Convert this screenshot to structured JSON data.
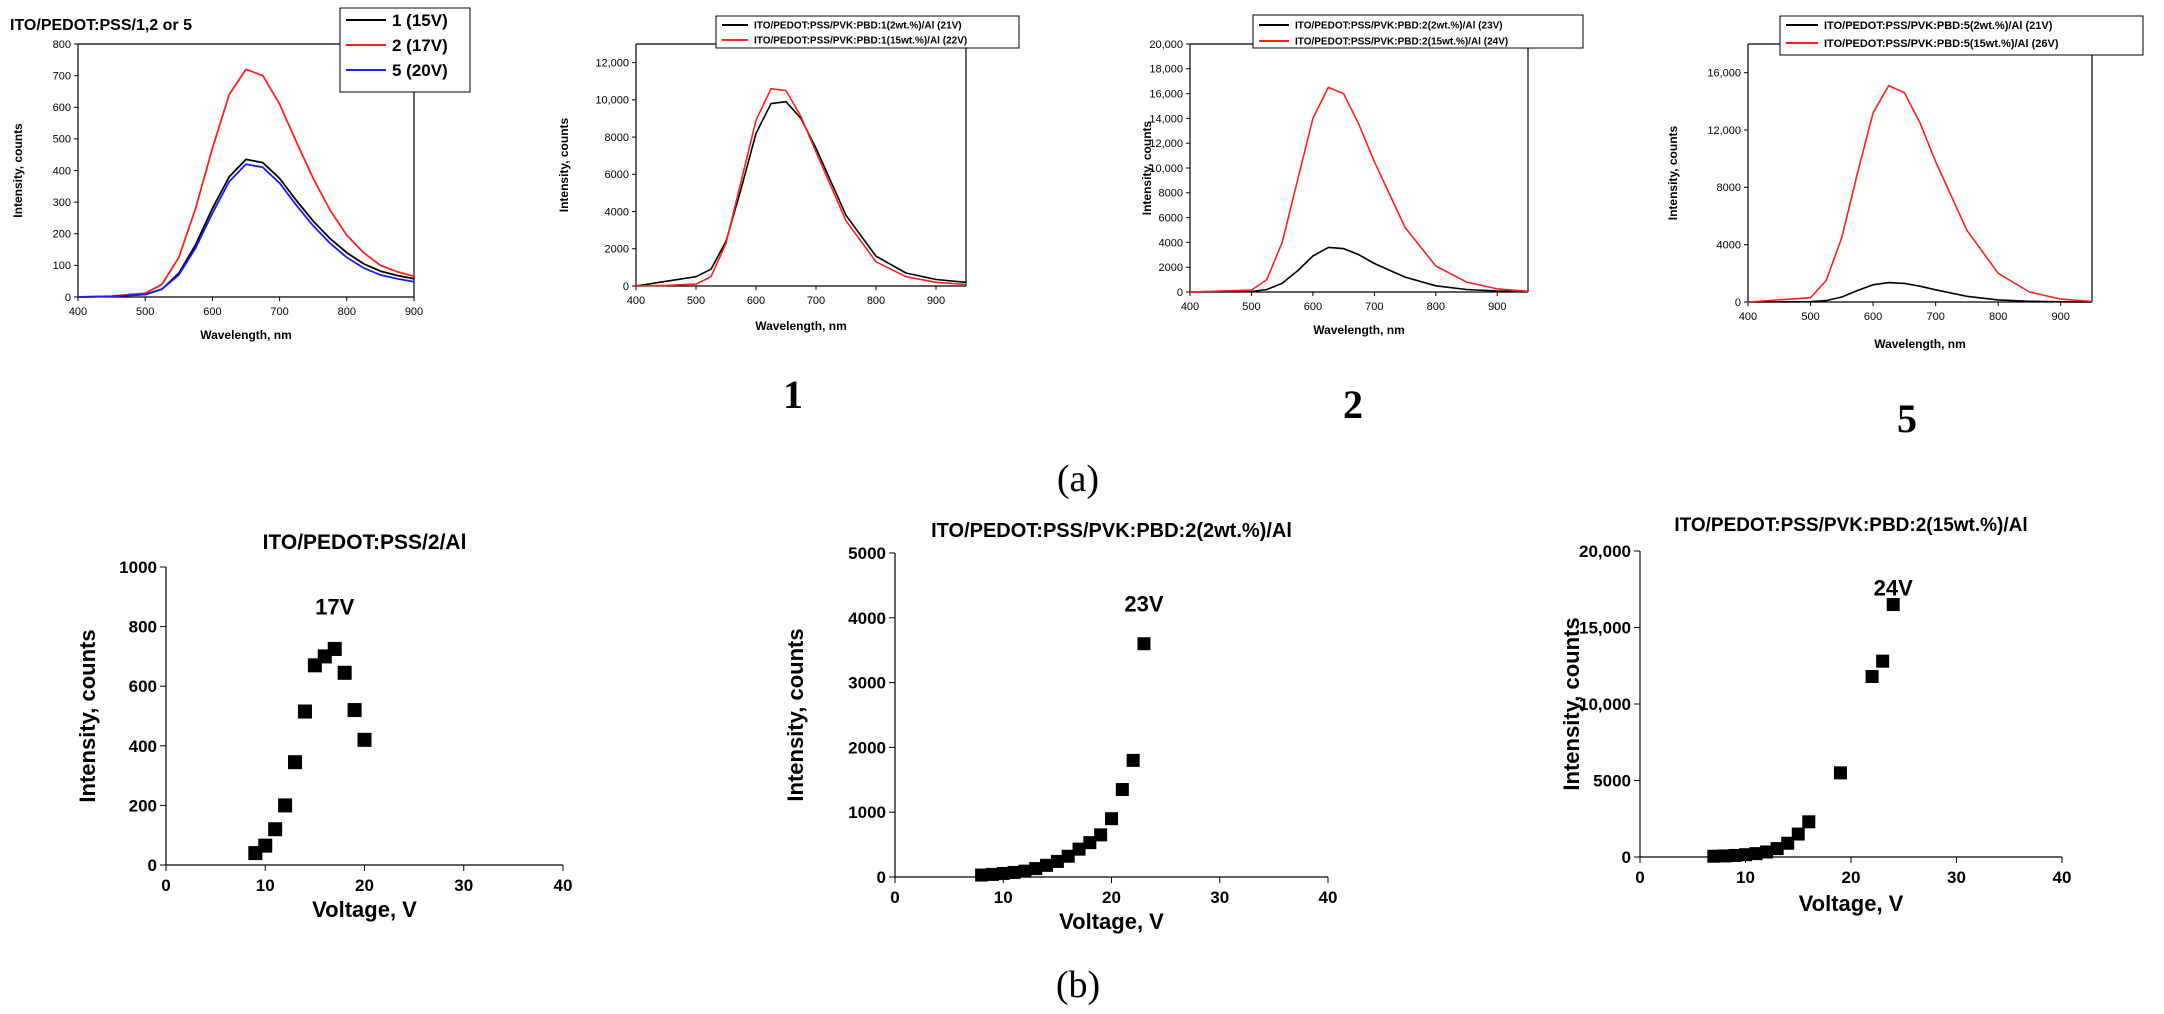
{
  "figure": {
    "panel_a_label": "(a)",
    "panel_b_label": "(b)",
    "sub_labels": [
      "1",
      "2",
      "5"
    ]
  },
  "chart_data": [
    {
      "type": "line",
      "title": "ITO/PEDOT:PSS/1,2 or 5",
      "xlabel": "Wavelength, nm",
      "ylabel": "Intensity, counts",
      "xlim": [
        400,
        900
      ],
      "ylim": [
        0,
        800
      ],
      "xticks": [
        400,
        500,
        600,
        700,
        800,
        900
      ],
      "yticks": [
        0,
        100,
        200,
        300,
        400,
        500,
        600,
        700,
        800
      ],
      "tick_labels_y": [
        "0",
        "100",
        "200",
        "300",
        "400",
        "500",
        "600",
        "700",
        "800"
      ],
      "legend_position": "top-right",
      "series": [
        {
          "name": "1 (15V)",
          "color": "#000000",
          "x": [
            400,
            450,
            500,
            525,
            550,
            575,
            600,
            625,
            650,
            675,
            700,
            725,
            750,
            775,
            800,
            825,
            850,
            875,
            900
          ],
          "values": [
            0,
            2,
            8,
            25,
            75,
            165,
            280,
            380,
            435,
            425,
            375,
            305,
            240,
            185,
            140,
            105,
            82,
            68,
            58
          ]
        },
        {
          "name": "2 (17V)",
          "color": "#ff2020",
          "x": [
            400,
            450,
            500,
            525,
            550,
            575,
            600,
            625,
            650,
            675,
            700,
            725,
            750,
            775,
            800,
            825,
            850,
            875,
            900
          ],
          "values": [
            0,
            3,
            12,
            40,
            125,
            280,
            470,
            640,
            720,
            700,
            610,
            490,
            375,
            275,
            195,
            140,
            100,
            80,
            65
          ]
        },
        {
          "name": "5 (20V)",
          "color": "#1a1aff",
          "x": [
            400,
            450,
            500,
            525,
            550,
            575,
            600,
            625,
            650,
            675,
            700,
            725,
            750,
            775,
            800,
            825,
            850,
            875,
            900
          ],
          "values": [
            0,
            2,
            8,
            25,
            70,
            155,
            265,
            365,
            420,
            410,
            360,
            290,
            225,
            170,
            125,
            92,
            70,
            58,
            48
          ]
        }
      ]
    },
    {
      "type": "line",
      "title": "",
      "xlabel": "Wavelength, nm",
      "ylabel": "Intensity, counts",
      "xlim": [
        400,
        950
      ],
      "ylim": [
        0,
        13000
      ],
      "xticks": [
        400,
        500,
        600,
        700,
        800,
        900
      ],
      "yticks": [
        0,
        2000,
        4000,
        6000,
        8000,
        10000,
        12000
      ],
      "tick_labels_y": [
        "0",
        "2000",
        "4000",
        "6000",
        "8000",
        "10,000",
        "12,000"
      ],
      "legend_position": "top",
      "series": [
        {
          "name": "ITO/PEDOT:PSS/PVK:PBD:1(2wt.%)/Al (21V)",
          "color": "#000000",
          "x": [
            400,
            450,
            500,
            525,
            550,
            575,
            600,
            625,
            650,
            675,
            700,
            750,
            800,
            850,
            900,
            950
          ],
          "values": [
            0,
            250,
            500,
            900,
            2400,
            5200,
            8200,
            9800,
            9900,
            9000,
            7400,
            3800,
            1600,
            700,
            350,
            200
          ]
        },
        {
          "name": "ITO/PEDOT:PSS/PVK:PBD:1(15wt.%)/Al (22V)",
          "color": "#ff2020",
          "x": [
            400,
            450,
            500,
            525,
            550,
            575,
            600,
            625,
            650,
            675,
            700,
            750,
            800,
            850,
            900,
            950
          ],
          "values": [
            0,
            30,
            100,
            500,
            2300,
            5600,
            8900,
            10600,
            10500,
            9100,
            7200,
            3500,
            1300,
            500,
            200,
            80
          ]
        }
      ]
    },
    {
      "type": "line",
      "title": "",
      "xlabel": "Wavelength, nm",
      "ylabel": "Intensity, counts",
      "xlim": [
        400,
        950
      ],
      "ylim": [
        0,
        20000
      ],
      "xticks": [
        400,
        500,
        600,
        700,
        800,
        900
      ],
      "yticks": [
        0,
        2000,
        4000,
        6000,
        8000,
        10000,
        12000,
        14000,
        16000,
        18000,
        20000
      ],
      "tick_labels_y": [
        "0",
        "2000",
        "4000",
        "6000",
        "8000",
        "10,000",
        "12,000",
        "14,000",
        "16,000",
        "18,000",
        "20,000"
      ],
      "legend_position": "top",
      "series": [
        {
          "name": "ITO/PEDOT:PSS/PVK:PBD:2(2wt.%)/Al (23V)",
          "color": "#000000",
          "x": [
            400,
            500,
            525,
            550,
            575,
            600,
            625,
            650,
            675,
            700,
            750,
            800,
            850,
            900,
            950
          ],
          "values": [
            0,
            30,
            200,
            700,
            1700,
            2900,
            3600,
            3500,
            3000,
            2300,
            1200,
            500,
            200,
            80,
            20
          ]
        },
        {
          "name": "ITO/PEDOT:PSS/PVK:PBD:2(15wt.%)/Al (24V)",
          "color": "#ff2020",
          "x": [
            400,
            500,
            525,
            550,
            575,
            600,
            625,
            650,
            675,
            700,
            750,
            800,
            850,
            900,
            950
          ],
          "values": [
            0,
            150,
            1000,
            4000,
            9000,
            14000,
            16500,
            16000,
            13500,
            10500,
            5200,
            2100,
            800,
            250,
            60
          ]
        }
      ]
    },
    {
      "type": "line",
      "title": "",
      "xlabel": "Wavelength, nm",
      "ylabel": "Intensity, counts",
      "xlim": [
        400,
        950
      ],
      "ylim": [
        0,
        18000
      ],
      "xticks": [
        400,
        500,
        600,
        700,
        800,
        900
      ],
      "yticks": [
        0,
        4000,
        8000,
        12000,
        16000
      ],
      "tick_labels_y": [
        "0",
        "4000",
        "8000",
        "12,000",
        "16,000"
      ],
      "legend_position": "top",
      "series": [
        {
          "name": "ITO/PEDOT:PSS/PVK:PBD:5(2wt.%)/Al (21V)",
          "color": "#000000",
          "x": [
            400,
            500,
            525,
            550,
            575,
            600,
            625,
            650,
            675,
            700,
            750,
            800,
            850,
            900,
            950
          ],
          "values": [
            0,
            20,
            100,
            350,
            800,
            1200,
            1350,
            1300,
            1100,
            850,
            400,
            150,
            50,
            15,
            0
          ]
        },
        {
          "name": "ITO/PEDOT:PSS/PVK:PBD:5(15wt.%)/Al (26V)",
          "color": "#ff2020",
          "x": [
            400,
            500,
            525,
            550,
            575,
            600,
            625,
            650,
            675,
            700,
            750,
            800,
            850,
            900,
            950
          ],
          "values": [
            0,
            300,
            1500,
            4500,
            9000,
            13200,
            15100,
            14600,
            12500,
            9800,
            5000,
            2000,
            700,
            200,
            40
          ]
        }
      ]
    },
    {
      "type": "scatter",
      "title": "ITO/PEDOT:PSS/2/Al",
      "xlabel": "Voltage, V",
      "ylabel": "Intensity, counts",
      "xlim": [
        0,
        40
      ],
      "ylim": [
        0,
        1000
      ],
      "xticks": [
        0,
        10,
        20,
        30,
        40
      ],
      "yticks": [
        0,
        200,
        400,
        600,
        800,
        1000
      ],
      "tick_labels_y": [
        "0",
        "200",
        "400",
        "600",
        "800",
        "1000"
      ],
      "annotation": {
        "text": "17V",
        "x": 17,
        "y": 840
      },
      "series": [
        {
          "name": "",
          "color": "#000000",
          "x": [
            9,
            10,
            11,
            12,
            13,
            14,
            15,
            16,
            17,
            18,
            19,
            20
          ],
          "values": [
            40,
            65,
            120,
            200,
            345,
            515,
            670,
            700,
            725,
            645,
            520,
            420
          ]
        }
      ]
    },
    {
      "type": "scatter",
      "title": "ITO/PEDOT:PSS/PVK:PBD:2(2wt.%)/Al",
      "xlabel": "Voltage, V",
      "ylabel": "Intensity, counts",
      "xlim": [
        0,
        40
      ],
      "ylim": [
        0,
        5000
      ],
      "xticks": [
        0,
        10,
        20,
        30,
        40
      ],
      "yticks": [
        0,
        1000,
        2000,
        3000,
        4000,
        5000
      ],
      "tick_labels_y": [
        "0",
        "1000",
        "2000",
        "3000",
        "4000",
        "5000"
      ],
      "annotation": {
        "text": "23V",
        "x": 23,
        "y": 4100
      },
      "series": [
        {
          "name": "",
          "color": "#000000",
          "x": [
            8,
            9,
            10,
            11,
            12,
            13,
            14,
            15,
            16,
            17,
            18,
            19,
            20,
            21,
            22,
            23
          ],
          "values": [
            30,
            40,
            55,
            70,
            90,
            130,
            180,
            240,
            320,
            430,
            530,
            650,
            900,
            1350,
            1800,
            3600
          ]
        }
      ]
    },
    {
      "type": "scatter",
      "title": "ITO/PEDOT:PSS/PVK:PBD:2(15wt.%)/Al",
      "xlabel": "Voltage, V",
      "ylabel": "Intensity, counts",
      "xlim": [
        0,
        40
      ],
      "ylim": [
        0,
        20000
      ],
      "xticks": [
        0,
        10,
        20,
        30,
        40
      ],
      "yticks": [
        0,
        5000,
        10000,
        15000,
        20000
      ],
      "tick_labels_y": [
        "0",
        "5000",
        "10,000",
        "15,000",
        "20,000"
      ],
      "annotation": {
        "text": "24V",
        "x": 24,
        "y": 17100
      },
      "series": [
        {
          "name": "",
          "color": "#000000",
          "x": [
            7,
            8,
            9,
            10,
            11,
            12,
            13,
            14,
            15,
            16,
            19,
            22,
            23,
            24
          ],
          "values": [
            50,
            70,
            100,
            150,
            220,
            330,
            550,
            900,
            1500,
            2300,
            5500,
            11800,
            12800,
            16500
          ]
        }
      ]
    }
  ]
}
